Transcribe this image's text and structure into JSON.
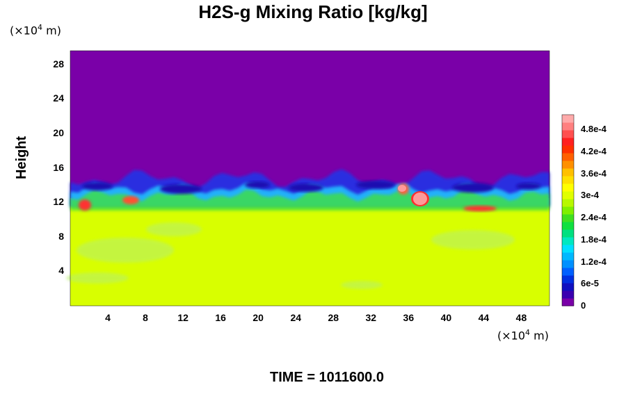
{
  "chart_data": {
    "type": "heatmap",
    "title": "H2S-g Mixing Ratio [kg/kg]",
    "ylabel": "Height",
    "x_unit": "(×10",
    "unit_exp": "4",
    "unit_tail": " m)",
    "x_ticks": [
      "4",
      "8",
      "12",
      "16",
      "20",
      "24",
      "28",
      "32",
      "36",
      "40",
      "44",
      "48"
    ],
    "x_tick_values": [
      4,
      8,
      12,
      16,
      20,
      24,
      28,
      32,
      36,
      40,
      44,
      48
    ],
    "y_ticks": [
      "4",
      "8",
      "12",
      "16",
      "20",
      "24",
      "28"
    ],
    "y_tick_values": [
      4,
      8,
      12,
      16,
      20,
      24,
      28
    ],
    "xlim": [
      0,
      51
    ],
    "ylim": [
      0,
      29.6
    ],
    "colorbar": {
      "labels": [
        "0",
        "6e-5",
        "1.2e-4",
        "1.8e-4",
        "2.4e-4",
        "3e-4",
        "3.6e-4",
        "4.2e-4",
        "4.8e-4"
      ],
      "label_values": [
        0,
        6e-05,
        0.00012,
        0.00018,
        0.00024,
        0.0003,
        0.00036,
        0.00042,
        0.00048
      ],
      "range": [
        0,
        0.00052
      ]
    },
    "fields": {
      "upper_value": 0,
      "lower_value": 0.000335,
      "interface_height": 12.5,
      "upper_color": "#7a00a8",
      "lower_color": "#d8ff00",
      "peak_color": "#ff9a9a"
    },
    "time_label": "TIME = 1011600.0"
  }
}
